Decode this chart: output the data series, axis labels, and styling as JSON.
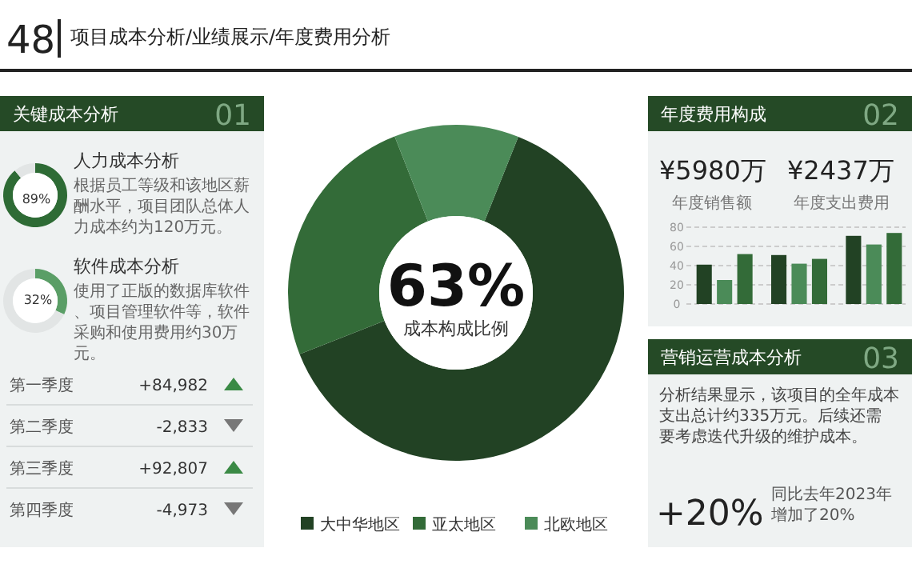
{
  "chart_data": [
    {
      "type": "other",
      "title": "项目成本分析/业绩展示/年度费用分析",
      "subtitle": "48"
    },
    {
      "type": "other",
      "title": "关键成本分析",
      "annotations": [
        "01"
      ]
    },
    {
      "type": "donut",
      "title": "人力成本分析",
      "annotations": [
        "根据员工等级和该地区薪酬水平，项目团队总体人力成本约为120万元。"
      ],
      "categories": [
        null,
        null
      ],
      "values": [
        89,
        11
      ],
      "colors": [
        "#2e6b35",
        "#e2e5e5"
      ],
      "value_labels": [
        "89%",
        null
      ]
    },
    {
      "type": "donut",
      "title": "软件成本分析",
      "annotations": [
        "使用了正版的数据库软件、项目管理软件等，软件采购和使用费用约30万元。"
      ],
      "categories": [
        null,
        null
      ],
      "values": [
        32,
        68
      ],
      "colors": [
        "#5a9e66",
        "#e2e5e5"
      ],
      "value_labels": [
        "32%",
        null
      ]
    },
    {
      "type": "other",
      "annotations": [
        "第一季度",
        "+84,982",
        "第二季度",
        "-2,833",
        "第三季度",
        "+92,807",
        "第四季度",
        "-4,973"
      ]
    },
    {
      "type": "donut",
      "categories": [
        "大中华地区",
        "亚太地区",
        "北欧地区"
      ],
      "values": [
        63,
        25,
        12
      ],
      "colors": [
        "#224224",
        "#336b38",
        "#4b8b58"
      ],
      "legend": "bottom",
      "annotations": [
        "63%",
        "成本构成比例"
      ]
    },
    {
      "type": "bar",
      "title": "年度费用构成",
      "annotations": [
        "02",
        "¥5980万",
        "年度销售额",
        "¥2437万",
        "年度支出费用"
      ],
      "categories": [
        null,
        null,
        null
      ],
      "series": [
        {
          "color": "#224224",
          "values": [
            41,
            51,
            71
          ]
        },
        {
          "color": "#4b8b58",
          "values": [
            25,
            42,
            62
          ]
        },
        {
          "color": "#336b38",
          "values": [
            52,
            47,
            74
          ]
        }
      ],
      "ylim": [
        0,
        80
      ],
      "yticks": [
        0,
        20,
        40,
        60,
        80
      ],
      "grid": "y"
    },
    {
      "type": "other",
      "title": "营销运营成本分析",
      "annotations": [
        "03",
        "分析结果显示，该项目的全年成本支出总计约335万元。后续还需要考虑迭代升级的维护成本。",
        "+20%",
        "同比去年2023年增加了20%"
      ]
    }
  ]
}
